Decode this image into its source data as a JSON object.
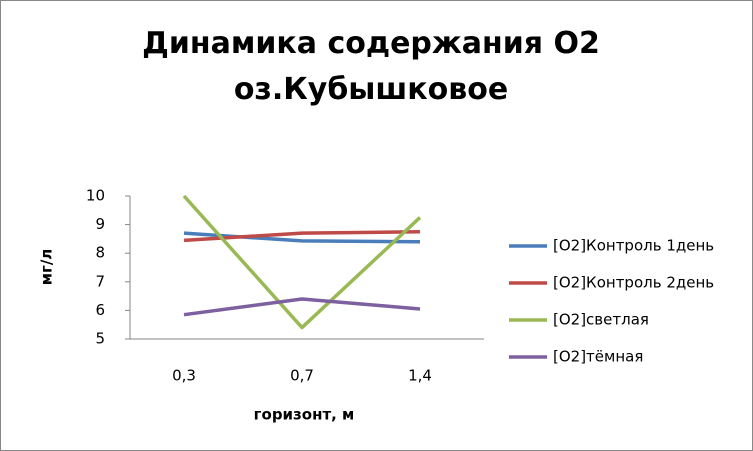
{
  "chart_data": {
    "type": "line",
    "title": "Динамика содержания О2 оз.Кубышковое",
    "x_label": "горизонт, м",
    "y_label": "мг/л",
    "categories": [
      "0,3",
      "0,7",
      "1,4"
    ],
    "series": [
      {
        "name": "[O2]Контроль 1день",
        "color": "#4a7ebb",
        "values": [
          8.7,
          8.43,
          8.4
        ]
      },
      {
        "name": "[O2]Контроль 2день",
        "color": "#be4b48",
        "values": [
          8.45,
          8.7,
          8.75
        ]
      },
      {
        "name": "[O2]светлая",
        "color": "#98b954",
        "values": [
          10,
          5.4,
          9.25
        ]
      },
      {
        "name": "[O2]тёмная",
        "color": "#7d60a0",
        "values": [
          5.85,
          6.4,
          6.05
        ]
      }
    ],
    "ylim": [
      5,
      10
    ],
    "yticks": [
      5,
      6,
      7,
      8,
      9,
      10
    ],
    "legend": "right"
  }
}
